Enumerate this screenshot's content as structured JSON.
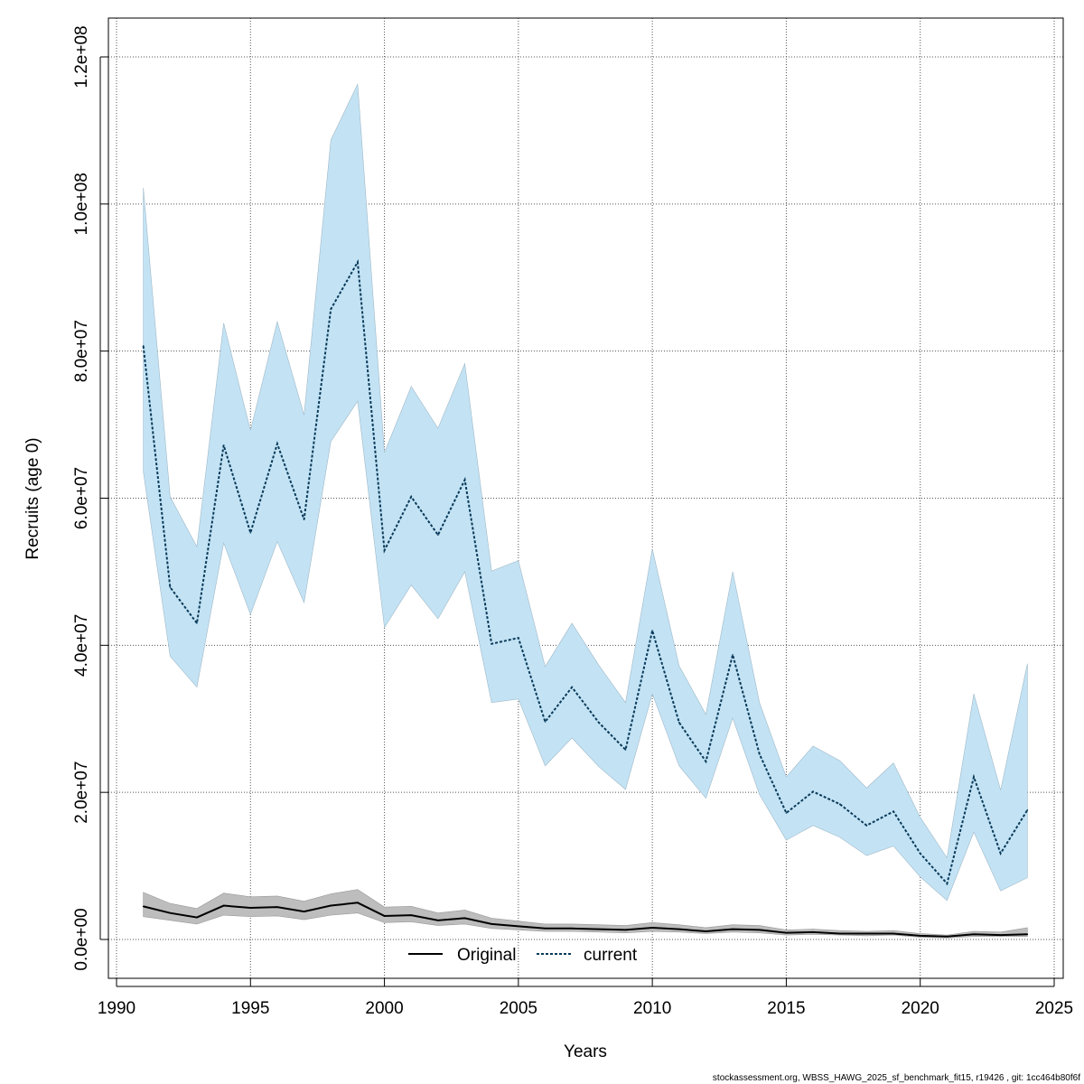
{
  "chart_data": {
    "type": "line",
    "title": "",
    "xlabel": "Years",
    "ylabel": "Recruits (age 0)",
    "xlim": [
      1990,
      2025
    ],
    "ylim": [
      0,
      120000000
    ],
    "x_ticks": [
      "1990",
      "1995",
      "2000",
      "2005",
      "2010",
      "2015",
      "2020",
      "2025"
    ],
    "y_ticks": [
      "0.0e+00",
      "2.0e+07",
      "4.0e+07",
      "6.0e+07",
      "8.0e+07",
      "1.0e+08",
      "1.2e+08"
    ],
    "grid": true,
    "legend_position": "bottom-center",
    "x": [
      1991,
      1992,
      1993,
      1994,
      1995,
      1996,
      1997,
      1998,
      1999,
      2000,
      2001,
      2002,
      2003,
      2004,
      2005,
      2006,
      2007,
      2008,
      2009,
      2010,
      2011,
      2012,
      2013,
      2014,
      2015,
      2016,
      2017,
      2018,
      2019,
      2020,
      2021,
      2022,
      2023,
      2024
    ],
    "unit_multiplier": 1000000,
    "series": [
      {
        "name": "Original",
        "color": "#000000",
        "band_color": "#bdbdbd",
        "values": [
          4.5,
          3.6,
          3.0,
          4.6,
          4.3,
          4.4,
          3.8,
          4.6,
          5.0,
          3.2,
          3.3,
          2.6,
          2.9,
          2.1,
          1.8,
          1.5,
          1.5,
          1.4,
          1.3,
          1.6,
          1.4,
          1.1,
          1.4,
          1.3,
          0.9,
          1.0,
          0.8,
          0.8,
          0.8,
          0.5,
          0.4,
          0.7,
          0.6,
          0.7
        ],
        "upper": [
          6.4,
          4.9,
          4.2,
          6.3,
          5.8,
          5.9,
          5.2,
          6.2,
          6.8,
          4.4,
          4.5,
          3.6,
          4.0,
          2.9,
          2.5,
          2.1,
          2.1,
          2.0,
          1.9,
          2.3,
          2.0,
          1.6,
          2.0,
          1.9,
          1.3,
          1.4,
          1.2,
          1.1,
          1.2,
          0.8,
          0.6,
          1.1,
          1.0,
          1.6
        ],
        "lower": [
          3.1,
          2.6,
          2.1,
          3.3,
          3.1,
          3.2,
          2.7,
          3.3,
          3.6,
          2.3,
          2.4,
          1.9,
          2.1,
          1.5,
          1.3,
          1.1,
          1.1,
          1.0,
          0.9,
          1.1,
          1.0,
          0.8,
          1.0,
          0.9,
          0.6,
          0.7,
          0.6,
          0.5,
          0.6,
          0.3,
          0.2,
          0.4,
          0.4,
          0.4
        ]
      },
      {
        "name": "current",
        "color": "#0a3a5a",
        "band_color": "#c3e3f4",
        "values": [
          80.7,
          47.9,
          43.0,
          67.2,
          55.3,
          67.4,
          57.1,
          85.7,
          92.1,
          52.9,
          60.2,
          55.0,
          62.5,
          40.2,
          41.0,
          29.6,
          34.3,
          29.5,
          25.8,
          42.0,
          29.5,
          24.2,
          38.7,
          25.2,
          17.2,
          20.1,
          18.4,
          15.5,
          17.4,
          11.7,
          7.6,
          22.1,
          11.7,
          17.6
        ],
        "upper": [
          102.2,
          60.2,
          53.4,
          83.8,
          69.2,
          84.0,
          71.3,
          108.7,
          116.3,
          66.2,
          75.2,
          69.5,
          78.3,
          50.1,
          51.5,
          37.1,
          43.0,
          37.3,
          32.2,
          53.1,
          37.2,
          30.6,
          50.0,
          32.2,
          22.1,
          26.3,
          24.3,
          20.6,
          24.0,
          16.6,
          11.1,
          33.4,
          20.3,
          37.5
        ],
        "lower": [
          63.6,
          38.5,
          34.3,
          53.9,
          44.2,
          54.1,
          45.8,
          67.7,
          73.2,
          42.4,
          48.2,
          43.6,
          50.0,
          32.2,
          32.7,
          23.6,
          27.4,
          23.5,
          20.4,
          33.4,
          23.6,
          19.2,
          30.1,
          19.7,
          13.5,
          15.5,
          13.9,
          11.4,
          12.7,
          8.5,
          5.3,
          14.6,
          6.6,
          8.4
        ]
      }
    ]
  },
  "footer": "stockassessment.org, WBSS_HAWG_2025_sf_benchmark_fit15, r19426 , git: 1cc464b80f6f"
}
